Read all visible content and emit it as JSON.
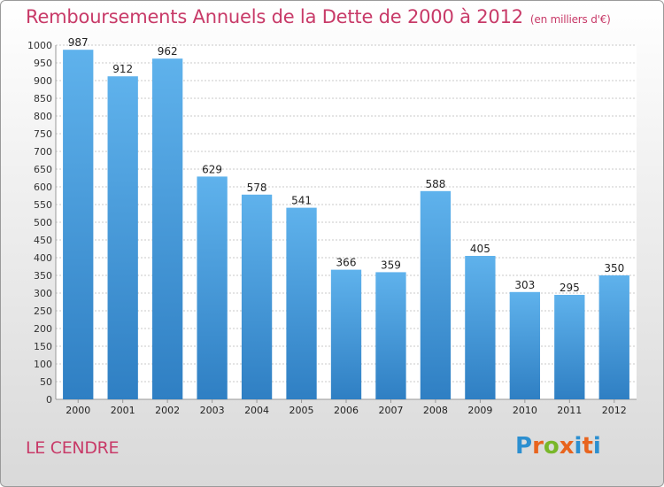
{
  "title": "Remboursements Annuels de la Dette de 2000 à 2012",
  "unit": "(en milliers d'€)",
  "commune": "LE CENDRE",
  "logo_text": "Proxiti",
  "logo_colors": [
    "#2c8fd0",
    "#e8641e",
    "#79b72a",
    "#e8641e",
    "#2c8fd0",
    "#e8641e",
    "#2c8fd0"
  ],
  "colors": {
    "title": "#c83a68",
    "bar_light": "#5fb2ec",
    "bar_dark": "#2f7fc3"
  },
  "chart_data": {
    "type": "bar",
    "categories": [
      "2000",
      "2001",
      "2002",
      "2003",
      "2004",
      "2005",
      "2006",
      "2007",
      "2008",
      "2009",
      "2010",
      "2011",
      "2012"
    ],
    "values": [
      987,
      912,
      962,
      629,
      578,
      541,
      366,
      359,
      588,
      405,
      303,
      295,
      350
    ],
    "ylim": [
      0,
      1000
    ],
    "yticks": [
      0,
      50,
      100,
      150,
      200,
      250,
      300,
      350,
      400,
      450,
      500,
      550,
      600,
      650,
      700,
      750,
      800,
      850,
      900,
      950,
      1000
    ],
    "grid": true,
    "title": "Remboursements Annuels de la Dette de 2000 à 2012"
  }
}
